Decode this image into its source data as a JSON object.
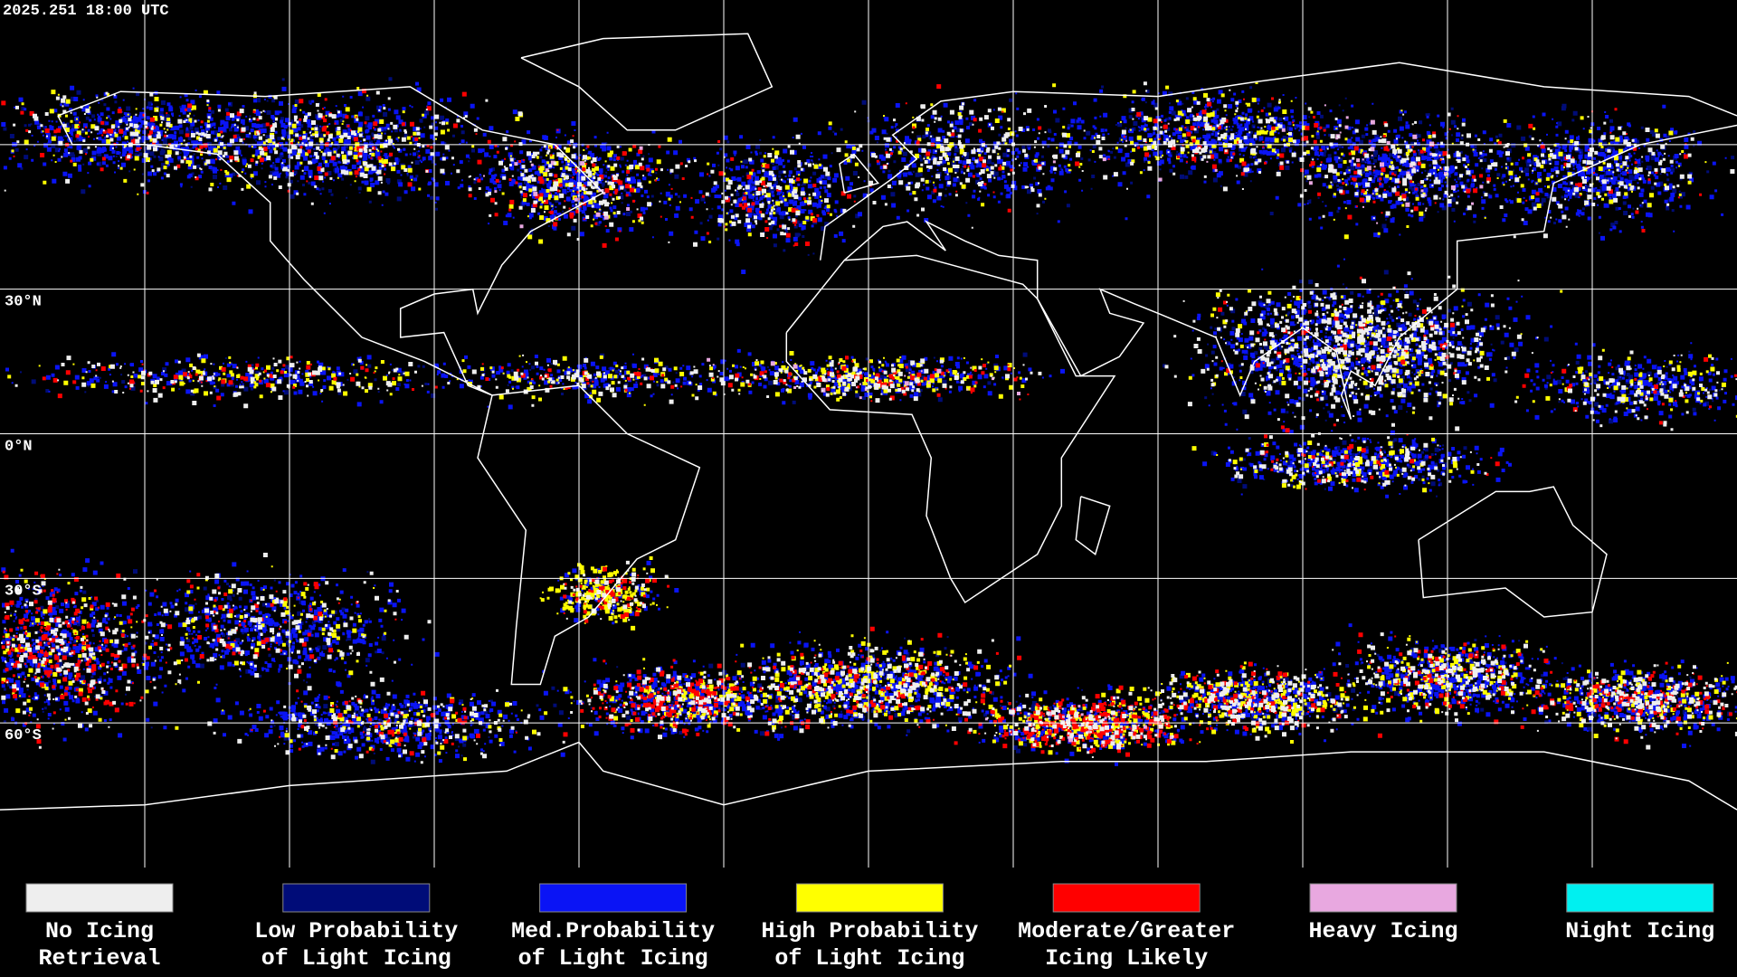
{
  "header": {
    "timestamp": "2025.251 18:00 UTC"
  },
  "map": {
    "lat_labels": [
      "30°N",
      "0°N",
      "30°S",
      "60°S"
    ]
  },
  "legend": {
    "items": [
      {
        "lines": [
          "No Icing",
          "Retrieval"
        ],
        "color": "#eeeeee"
      },
      {
        "lines": [
          "Low Probability",
          "of Light Icing"
        ],
        "color": "#000c78"
      },
      {
        "lines": [
          "Med.Probability",
          "of Light Icing"
        ],
        "color": "#0a14f5"
      },
      {
        "lines": [
          "High Probability",
          "of Light Icing"
        ],
        "color": "#ffff00"
      },
      {
        "lines": [
          "Moderate/Greater",
          "Icing Likely"
        ],
        "color": "#ff0000"
      },
      {
        "lines": [
          "Heavy Icing"
        ],
        "color": "#e8a8e0"
      },
      {
        "lines": [
          "Night Icing"
        ],
        "color": "#00f0f0"
      }
    ]
  }
}
